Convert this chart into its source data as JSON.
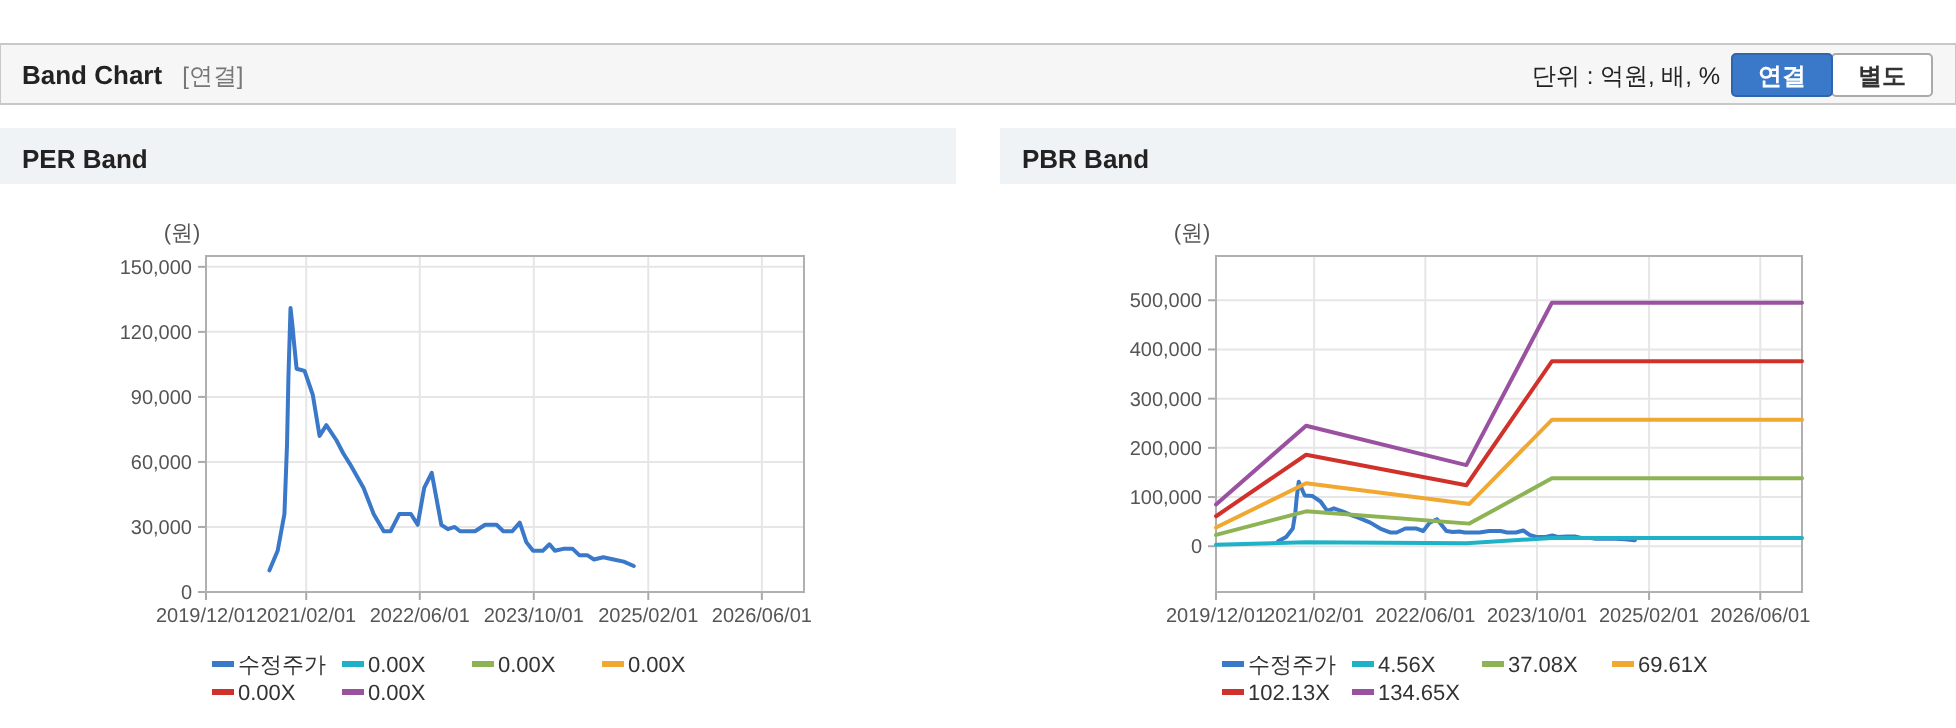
{
  "chart_data": [
    {
      "type": "other",
      "title": "Band Chart",
      "subtitle": "[연결]",
      "annotations": [
        "단위 : 억원, 배, %",
        "연결",
        "별도"
      ]
    },
    {
      "type": "line",
      "title": "PER Band",
      "ylabel": "(원)",
      "xlim": [
        "2019-12-01",
        "2026-11-28"
      ],
      "ylim": [
        0,
        155000
      ],
      "xticks": [
        {
          "value": "2019-12-01",
          "label": "2019/12/01"
        },
        {
          "value": "2021-02-01",
          "label": "2021/02/01"
        },
        {
          "value": "2022-06-01",
          "label": "2022/06/01"
        },
        {
          "value": "2023-10-01",
          "label": "2023/10/01"
        },
        {
          "value": "2025-02-01",
          "label": "2025/02/01"
        },
        {
          "value": "2026-06-01",
          "label": "2026/06/01"
        }
      ],
      "yticks": [
        {
          "value": 0,
          "label": "0"
        },
        {
          "value": 30000,
          "label": "30,000"
        },
        {
          "value": 60000,
          "label": "60,000"
        },
        {
          "value": 90000,
          "label": "90,000"
        },
        {
          "value": 120000,
          "label": "120,000"
        },
        {
          "value": 150000,
          "label": "150,000"
        }
      ],
      "grid": true,
      "legend": "bottom",
      "series": [
        {
          "name": "수정주가",
          "color": "#3a78c9",
          "x": [
            "2020-08-28",
            "2020-10-02",
            "2020-10-31",
            "2020-11-11",
            "2020-11-17",
            "2020-11-26",
            "2020-12-05",
            "2020-12-10",
            "2020-12-22",
            "2021-01-25",
            "2021-03-01",
            "2021-03-30",
            "2021-04-28",
            "2021-06-10",
            "2021-07-09",
            "2021-08-07",
            "2021-10-04",
            "2021-11-16",
            "2021-12-29",
            "2022-01-27",
            "2022-03-06",
            "2022-04-24",
            "2022-05-23",
            "2022-06-20",
            "2022-07-22",
            "2022-09-01",
            "2022-09-29",
            "2022-10-28",
            "2022-11-20",
            "2023-01-23",
            "2023-03-07",
            "2023-04-25",
            "2023-05-24",
            "2023-07-01",
            "2023-08-02",
            "2023-08-30",
            "2023-09-28",
            "2023-11-08",
            "2023-12-07",
            "2023-12-30",
            "2024-02-08",
            "2024-03-14",
            "2024-04-12",
            "2024-05-16",
            "2024-06-14",
            "2024-07-24",
            "2024-09-06",
            "2024-10-19",
            "2024-12-01"
          ],
          "values": [
            10000,
            19000,
            36000,
            68000,
            99000,
            131000,
            122000,
            116000,
            103000,
            102000,
            91000,
            72000,
            77000,
            70000,
            64000,
            59000,
            48000,
            36000,
            28000,
            28000,
            36000,
            36000,
            31000,
            48000,
            55000,
            31000,
            29000,
            30000,
            28000,
            28000,
            31000,
            31000,
            28000,
            28000,
            32000,
            23000,
            19000,
            19000,
            22000,
            19000,
            20000,
            20000,
            17000,
            17000,
            15000,
            16000,
            15000,
            14000,
            12000
          ]
        },
        {
          "name": "0.00X",
          "color": "#1fb1c6"
        },
        {
          "name": "0.00X",
          "color": "#8db354"
        },
        {
          "name": "0.00X",
          "color": "#f0a830"
        },
        {
          "name": "0.00X",
          "color": "#d0322b"
        },
        {
          "name": "0.00X",
          "color": "#9a52a0"
        }
      ]
    },
    {
      "type": "line",
      "title": "PBR Band",
      "ylabel": "(원)",
      "xlim": [
        "2019-12-01",
        "2026-11-30"
      ],
      "ylim": [
        -93000,
        590000
      ],
      "xticks": [
        {
          "value": "2019-12-01",
          "label": "2019/12/01"
        },
        {
          "value": "2021-02-01",
          "label": "2021/02/01"
        },
        {
          "value": "2022-06-01",
          "label": "2022/06/01"
        },
        {
          "value": "2023-10-01",
          "label": "2023/10/01"
        },
        {
          "value": "2025-02-01",
          "label": "2025/02/01"
        },
        {
          "value": "2026-06-01",
          "label": "2026/06/01"
        }
      ],
      "yticks": [
        {
          "value": 0,
          "label": "0"
        },
        {
          "value": 100000,
          "label": "100,000"
        },
        {
          "value": 200000,
          "label": "200,000"
        },
        {
          "value": 300000,
          "label": "300,000"
        },
        {
          "value": 400000,
          "label": "400,000"
        },
        {
          "value": 500000,
          "label": "500,000"
        }
      ],
      "grid": true,
      "legend": "bottom",
      "series": [
        {
          "name": "수정주가",
          "color": "#3a78c9",
          "x": [
            "2020-08-28",
            "2020-10-02",
            "2020-10-31",
            "2020-11-11",
            "2020-11-17",
            "2020-11-26",
            "2020-12-05",
            "2020-12-10",
            "2020-12-22",
            "2021-01-25",
            "2021-03-01",
            "2021-03-30",
            "2021-04-28",
            "2021-06-10",
            "2021-07-09",
            "2021-08-07",
            "2021-10-04",
            "2021-11-16",
            "2021-12-29",
            "2022-01-27",
            "2022-03-06",
            "2022-04-24",
            "2022-05-23",
            "2022-06-20",
            "2022-07-22",
            "2022-09-01",
            "2022-09-29",
            "2022-10-28",
            "2022-11-20",
            "2023-01-23",
            "2023-03-07",
            "2023-04-25",
            "2023-05-24",
            "2023-07-01",
            "2023-08-02",
            "2023-08-30",
            "2023-09-28",
            "2023-11-08",
            "2023-12-07",
            "2023-12-30",
            "2024-02-08",
            "2024-03-14",
            "2024-04-12",
            "2024-05-16",
            "2024-06-14",
            "2024-07-24",
            "2024-09-06",
            "2024-10-19",
            "2024-12-01"
          ],
          "values": [
            10000,
            19000,
            36000,
            68000,
            99000,
            131000,
            122000,
            116000,
            103000,
            102000,
            91000,
            72000,
            77000,
            70000,
            64000,
            59000,
            48000,
            36000,
            28000,
            28000,
            36000,
            36000,
            31000,
            48000,
            55000,
            31000,
            29000,
            30000,
            28000,
            28000,
            31000,
            31000,
            28000,
            28000,
            32000,
            23000,
            19000,
            19000,
            22000,
            19000,
            20000,
            20000,
            17000,
            17000,
            15000,
            16000,
            15000,
            14000,
            12000
          ]
        },
        {
          "name": "4.56X",
          "color": "#1fb1c6",
          "x": [
            "2019-12-01",
            "2020-12-28",
            "2022-11-27",
            "2023-12-05",
            "2026-11-30"
          ],
          "values": [
            3000,
            8000,
            6000,
            17000,
            17000
          ]
        },
        {
          "name": "37.08X",
          "color": "#8db354",
          "x": [
            "2019-12-01",
            "2020-12-28",
            "2022-12-10",
            "2023-12-05",
            "2026-11-30"
          ],
          "values": [
            23000,
            71000,
            46000,
            138000,
            138000
          ]
        },
        {
          "name": "69.61X",
          "color": "#f0a830",
          "x": [
            "2019-12-01",
            "2020-12-28",
            "2022-12-10",
            "2023-12-05",
            "2026-11-30"
          ],
          "values": [
            38000,
            128000,
            86000,
            257000,
            257000
          ]
        },
        {
          "name": "102.13X",
          "color": "#d0322b",
          "x": [
            "2019-12-01",
            "2020-12-28",
            "2022-11-27",
            "2023-12-05",
            "2026-11-30"
          ],
          "values": [
            61000,
            186000,
            124000,
            376000,
            376000
          ]
        },
        {
          "name": "134.65X",
          "color": "#9a52a0",
          "x": [
            "2019-12-01",
            "2020-12-28",
            "2022-11-27",
            "2023-12-05",
            "2026-11-30"
          ],
          "values": [
            85000,
            245000,
            165000,
            495000,
            495000
          ]
        }
      ]
    }
  ]
}
